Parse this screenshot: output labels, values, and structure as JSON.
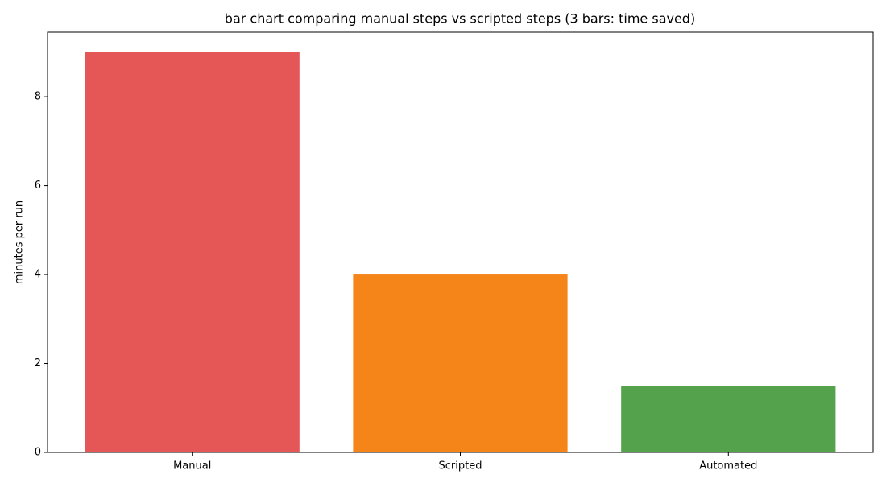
{
  "chart_data": {
    "type": "bar",
    "title": "bar chart comparing manual steps vs scripted steps (3 bars: time saved)",
    "y_label": "minutes per run",
    "categories": [
      "Manual",
      "Scripted",
      "Automated"
    ],
    "values": [
      9,
      4,
      1.5
    ],
    "colors": [
      "#e45756",
      "#f58518",
      "#54a24b"
    ],
    "ylim": [
      0,
      9.45
    ],
    "yticks": [
      0,
      2,
      4,
      6,
      8
    ],
    "grid": false
  }
}
